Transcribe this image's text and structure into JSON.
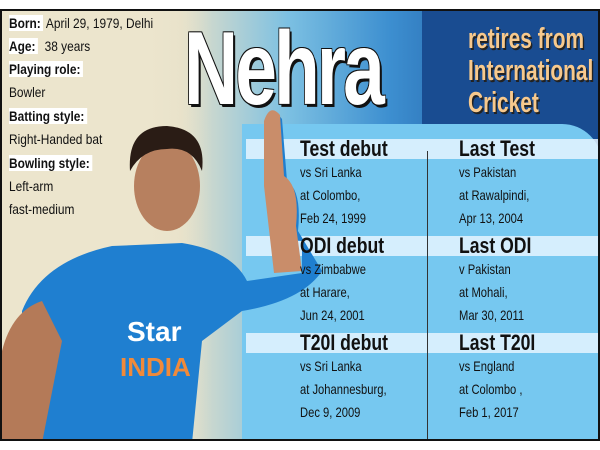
{
  "title": "Nehra",
  "subtitle": [
    "retires from",
    "International",
    "Cricket"
  ],
  "profile": [
    {
      "label": "Born:",
      "value": "April 29, 1979, Delhi"
    },
    {
      "label": "Age:",
      "value": "38 years"
    },
    {
      "label": "Playing role:",
      "value": "Bowler"
    },
    {
      "label": "Batting style:",
      "value": "Right-Handed bat"
    },
    {
      "label": "Bowling style:",
      "value": "Left-arm",
      "value2": "fast-medium"
    }
  ],
  "jersey_text": [
    "Star",
    "INDIA"
  ],
  "career": [
    {
      "heading": "Test debut",
      "lines": [
        "vs Sri Lanka",
        "at Colombo,",
        "Feb 24, 1999"
      ]
    },
    {
      "heading": "Last Test",
      "lines": [
        "vs Pakistan",
        "at Rawalpindi,",
        "Apr 13, 2004"
      ]
    },
    {
      "heading": "ODI debut",
      "lines": [
        "vs Zimbabwe",
        "at Harare,",
        "Jun 24, 2001"
      ]
    },
    {
      "heading": "Last ODI",
      "lines": [
        "v Pakistan",
        "at Mohali,",
        "Mar 30, 2011"
      ]
    },
    {
      "heading": "T20I debut",
      "lines": [
        "vs Sri Lanka",
        "at Johannesburg,",
        "Dec 9, 2009"
      ]
    },
    {
      "heading": "Last T20I",
      "lines": [
        "vs England",
        "at Colombo ,",
        "Feb 1, 2017"
      ]
    }
  ],
  "colors": {
    "dark_blue": "#194c91",
    "panel_blue": "#76c8f0",
    "subtitle": "#f7c98d",
    "beige": "#ece5cd",
    "jersey": "#1f7fd0"
  }
}
